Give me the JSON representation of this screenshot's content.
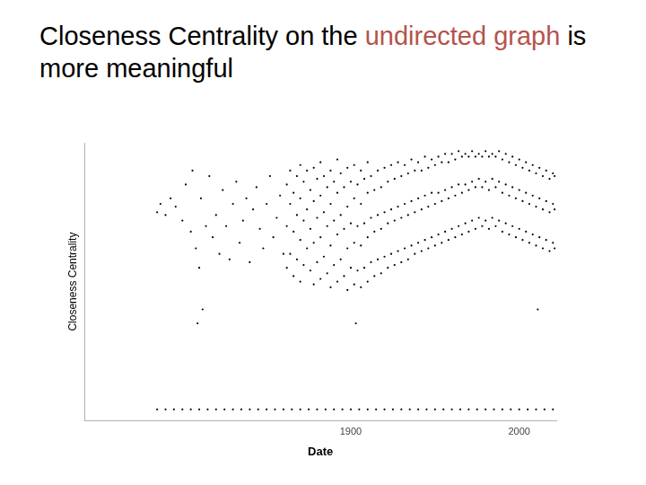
{
  "slide": {
    "title_parts": [
      {
        "text": "Closeness Centrality on the ",
        "color": "#000000"
      },
      {
        "text": "undirected graph",
        "color": "#b5534c"
      },
      {
        "text": " is more meaningful",
        "color": "#000000"
      }
    ]
  },
  "chart_data": {
    "type": "scatter",
    "x_label": "Date",
    "y_label": "Closeness Centrality",
    "color": "#000000",
    "marker": "circle",
    "grid": false,
    "tick_labels": "x",
    "xlim": [
      1742,
      2022
    ],
    "xticks": [
      1900,
      2000
    ],
    "ylim": [
      0,
      1
    ],
    "x": [
      1785,
      1787,
      1790,
      1793,
      1796,
      1800,
      1802,
      1805,
      1806,
      1808,
      1809,
      1810,
      1811,
      1812,
      1814,
      1816,
      1818,
      1820,
      1822,
      1824,
      1826,
      1828,
      1830,
      1832,
      1834,
      1836,
      1838,
      1840,
      1842,
      1844,
      1846,
      1848,
      1850,
      1852,
      1854,
      1856,
      1858,
      1860,
      1862,
      1862,
      1862,
      1864,
      1864,
      1864,
      1866,
      1866,
      1866,
      1868,
      1868,
      1868,
      1870,
      1870,
      1870,
      1870,
      1872,
      1872,
      1872,
      1874,
      1874,
      1874,
      1876,
      1876,
      1876,
      1878,
      1878,
      1878,
      1878,
      1880,
      1880,
      1880,
      1882,
      1882,
      1882,
      1882,
      1884,
      1884,
      1884,
      1886,
      1886,
      1886,
      1888,
      1888,
      1888,
      1888,
      1890,
      1890,
      1890,
      1892,
      1892,
      1892,
      1892,
      1894,
      1894,
      1894,
      1896,
      1896,
      1896,
      1898,
      1898,
      1898,
      1898,
      1900,
      1900,
      1900,
      1902,
      1902,
      1902,
      1902,
      1903,
      1904,
      1904,
      1904,
      1906,
      1906,
      1906,
      1906,
      1908,
      1908,
      1908,
      1910,
      1910,
      1910,
      1910,
      1912,
      1912,
      1912,
      1914,
      1914,
      1914,
      1916,
      1916,
      1916,
      1918,
      1918,
      1918,
      1920,
      1920,
      1920,
      1922,
      1922,
      1922,
      1924,
      1924,
      1924,
      1926,
      1926,
      1926,
      1928,
      1928,
      1928,
      1930,
      1930,
      1930,
      1932,
      1932,
      1932,
      1934,
      1934,
      1934,
      1936,
      1936,
      1936,
      1938,
      1938,
      1938,
      1940,
      1940,
      1940,
      1942,
      1942,
      1942,
      1944,
      1944,
      1944,
      1946,
      1946,
      1946,
      1948,
      1948,
      1948,
      1950,
      1950,
      1950,
      1952,
      1952,
      1952,
      1954,
      1954,
      1954,
      1956,
      1956,
      1956,
      1958,
      1958,
      1958,
      1960,
      1960,
      1960,
      1962,
      1962,
      1962,
      1964,
      1964,
      1964,
      1966,
      1966,
      1966,
      1968,
      1968,
      1968,
      1970,
      1970,
      1970,
      1972,
      1972,
      1972,
      1974,
      1974,
      1974,
      1976,
      1976,
      1976,
      1978,
      1978,
      1978,
      1980,
      1980,
      1980,
      1982,
      1982,
      1982,
      1984,
      1984,
      1984,
      1986,
      1986,
      1986,
      1988,
      1988,
      1988,
      1990,
      1990,
      1990,
      1992,
      1992,
      1992,
      1994,
      1994,
      1994,
      1996,
      1996,
      1996,
      1998,
      1998,
      1998,
      2000,
      2000,
      2000,
      2002,
      2002,
      2002,
      2004,
      2004,
      2004,
      2006,
      2006,
      2006,
      2008,
      2008,
      2008,
      2010,
      2010,
      2010,
      2011,
      2012,
      2012,
      2012,
      2014,
      2014,
      2014,
      2016,
      2016,
      2016,
      2018,
      2018,
      2018,
      2020,
      2020,
      2020,
      2021,
      2021,
      2021,
      1785,
      1790,
      1795,
      1800,
      1805,
      1810,
      1815,
      1820,
      1825,
      1830,
      1835,
      1840,
      1845,
      1850,
      1855,
      1860,
      1865,
      1870,
      1875,
      1880,
      1885,
      1890,
      1895,
      1900,
      1905,
      1910,
      1915,
      1920,
      1925,
      1930,
      1935,
      1940,
      1945,
      1950,
      1955,
      1960,
      1965,
      1970,
      1975,
      1980,
      1985,
      1990,
      1995,
      2000,
      2005,
      2010,
      2015,
      2020
    ],
    "values": [
      0.75,
      0.78,
      0.74,
      0.8,
      0.77,
      0.72,
      0.85,
      0.68,
      0.9,
      0.62,
      0.35,
      0.55,
      0.8,
      0.4,
      0.7,
      0.88,
      0.66,
      0.74,
      0.6,
      0.83,
      0.7,
      0.58,
      0.78,
      0.86,
      0.64,
      0.72,
      0.8,
      0.57,
      0.76,
      0.84,
      0.69,
      0.62,
      0.78,
      0.88,
      0.66,
      0.73,
      0.81,
      0.6,
      0.55,
      0.7,
      0.85,
      0.6,
      0.78,
      0.9,
      0.52,
      0.68,
      0.82,
      0.58,
      0.74,
      0.88,
      0.5,
      0.65,
      0.8,
      0.92,
      0.56,
      0.72,
      0.86,
      0.62,
      0.76,
      0.9,
      0.54,
      0.69,
      0.83,
      0.49,
      0.64,
      0.79,
      0.91,
      0.57,
      0.73,
      0.87,
      0.51,
      0.66,
      0.81,
      0.93,
      0.59,
      0.75,
      0.88,
      0.53,
      0.7,
      0.84,
      0.48,
      0.63,
      0.78,
      0.9,
      0.56,
      0.72,
      0.86,
      0.5,
      0.67,
      0.82,
      0.94,
      0.58,
      0.74,
      0.89,
      0.52,
      0.69,
      0.84,
      0.47,
      0.62,
      0.77,
      0.91,
      0.55,
      0.71,
      0.86,
      0.49,
      0.64,
      0.8,
      0.92,
      0.35,
      0.54,
      0.7,
      0.85,
      0.48,
      0.63,
      0.78,
      0.9,
      0.55,
      0.71,
      0.87,
      0.5,
      0.66,
      0.82,
      0.93,
      0.57,
      0.73,
      0.88,
      0.52,
      0.68,
      0.83,
      0.58,
      0.74,
      0.9,
      0.53,
      0.69,
      0.84,
      0.59,
      0.75,
      0.91,
      0.55,
      0.71,
      0.86,
      0.6,
      0.76,
      0.92,
      0.56,
      0.72,
      0.87,
      0.61,
      0.77,
      0.93,
      0.57,
      0.73,
      0.88,
      0.62,
      0.78,
      0.92,
      0.58,
      0.74,
      0.89,
      0.63,
      0.79,
      0.94,
      0.6,
      0.75,
      0.9,
      0.64,
      0.8,
      0.93,
      0.61,
      0.76,
      0.9,
      0.65,
      0.81,
      0.95,
      0.62,
      0.77,
      0.91,
      0.66,
      0.82,
      0.94,
      0.63,
      0.78,
      0.92,
      0.67,
      0.82,
      0.95,
      0.64,
      0.79,
      0.93,
      0.68,
      0.83,
      0.96,
      0.65,
      0.8,
      0.93,
      0.69,
      0.84,
      0.96,
      0.66,
      0.81,
      0.94,
      0.7,
      0.85,
      0.97,
      0.67,
      0.82,
      0.95,
      0.71,
      0.85,
      0.96,
      0.68,
      0.83,
      0.95,
      0.72,
      0.86,
      0.97,
      0.69,
      0.84,
      0.95,
      0.73,
      0.87,
      0.96,
      0.7,
      0.84,
      0.95,
      0.72,
      0.86,
      0.97,
      0.69,
      0.83,
      0.95,
      0.73,
      0.87,
      0.96,
      0.7,
      0.84,
      0.95,
      0.72,
      0.86,
      0.97,
      0.68,
      0.82,
      0.94,
      0.71,
      0.85,
      0.96,
      0.67,
      0.81,
      0.93,
      0.7,
      0.84,
      0.95,
      0.66,
      0.8,
      0.92,
      0.69,
      0.83,
      0.94,
      0.65,
      0.79,
      0.91,
      0.68,
      0.82,
      0.93,
      0.64,
      0.78,
      0.9,
      0.67,
      0.81,
      0.92,
      0.63,
      0.77,
      0.89,
      0.4,
      0.66,
      0.8,
      0.91,
      0.62,
      0.76,
      0.88,
      0.65,
      0.79,
      0.9,
      0.61,
      0.75,
      0.87,
      0.64,
      0.78,
      0.89,
      0.62,
      0.76,
      0.88,
      0.04,
      0.04,
      0.04,
      0.04,
      0.04,
      0.04,
      0.04,
      0.04,
      0.04,
      0.04,
      0.04,
      0.04,
      0.04,
      0.04,
      0.04,
      0.04,
      0.04,
      0.04,
      0.04,
      0.04,
      0.04,
      0.04,
      0.04,
      0.04,
      0.04,
      0.04,
      0.04,
      0.04,
      0.04,
      0.04,
      0.04,
      0.04,
      0.04,
      0.04,
      0.04,
      0.04,
      0.04,
      0.04,
      0.04,
      0.04,
      0.04,
      0.04,
      0.04,
      0.04,
      0.04,
      0.04,
      0.04,
      0.04
    ]
  }
}
